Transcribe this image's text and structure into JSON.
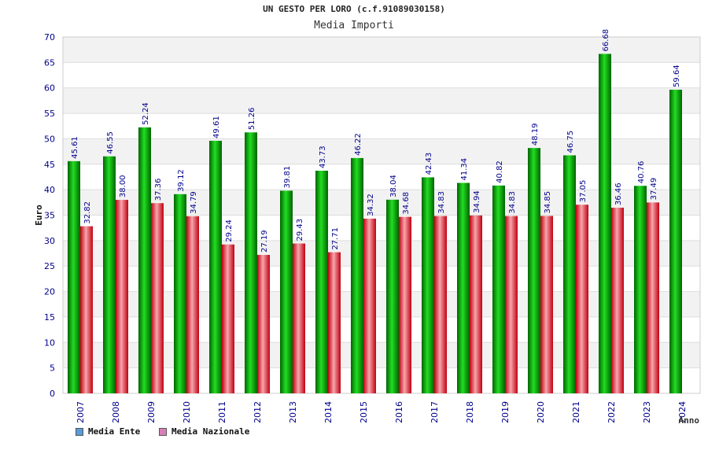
{
  "header": {
    "title": "UN GESTO PER LORO (c.f.91089030158)",
    "subtitle": "Media Importi"
  },
  "legend": {
    "ente_label": "Media Ente",
    "nazionale_label": "Media Nazionale"
  },
  "colors": {
    "ente_swatch": "#5b9bd5",
    "nazionale_swatch": "#d97fb8",
    "ente_bar": "#00b400",
    "nazionale_bar": "#e0202a",
    "axis_text": "#00008b"
  },
  "chart_data": {
    "type": "bar",
    "title": "UN GESTO PER LORO (c.f.91089030158)",
    "subtitle": "Media Importi",
    "xlabel": "Anno",
    "ylabel": "Euro",
    "ylim": [
      0,
      70
    ],
    "y_ticks": [
      0,
      5,
      10,
      15,
      20,
      25,
      30,
      35,
      40,
      45,
      50,
      55,
      60,
      65,
      70
    ],
    "grid": "horizontal bands",
    "legend_position": "bottom-left",
    "categories": [
      "2007",
      "2008",
      "2009",
      "2010",
      "2011",
      "2012",
      "2013",
      "2014",
      "2015",
      "2016",
      "2017",
      "2018",
      "2019",
      "2020",
      "2021",
      "2022",
      "2023",
      "2024"
    ],
    "series": [
      {
        "name": "Media Ente",
        "values": [
          45.61,
          46.55,
          52.24,
          39.12,
          49.61,
          51.26,
          39.81,
          43.73,
          46.22,
          38.04,
          42.43,
          41.34,
          40.82,
          48.19,
          46.75,
          66.68,
          40.76,
          59.64
        ],
        "labels": [
          "45.61",
          "46.55",
          "52.24",
          "39.12",
          "49.61",
          "51.26",
          "39.81",
          "43.73",
          "46.22",
          "38.04",
          "42.43",
          "41.34",
          "40.82",
          "48.19",
          "46.75",
          "66.68",
          "40.76",
          "59.64"
        ]
      },
      {
        "name": "Media Nazionale",
        "values": [
          32.82,
          38.0,
          37.36,
          34.79,
          29.24,
          27.19,
          29.43,
          27.71,
          34.32,
          34.68,
          34.83,
          34.94,
          34.83,
          34.85,
          37.05,
          36.46,
          37.49,
          null
        ],
        "labels": [
          "32.82",
          "38.00",
          "37.36",
          "34.79",
          "29.24",
          "27.19",
          "29.43",
          "27.71",
          "34.32",
          "34.68",
          "34.83",
          "34.94",
          "34.83",
          "34.85",
          "37.05",
          "36.46",
          "37.49",
          null
        ]
      }
    ]
  }
}
